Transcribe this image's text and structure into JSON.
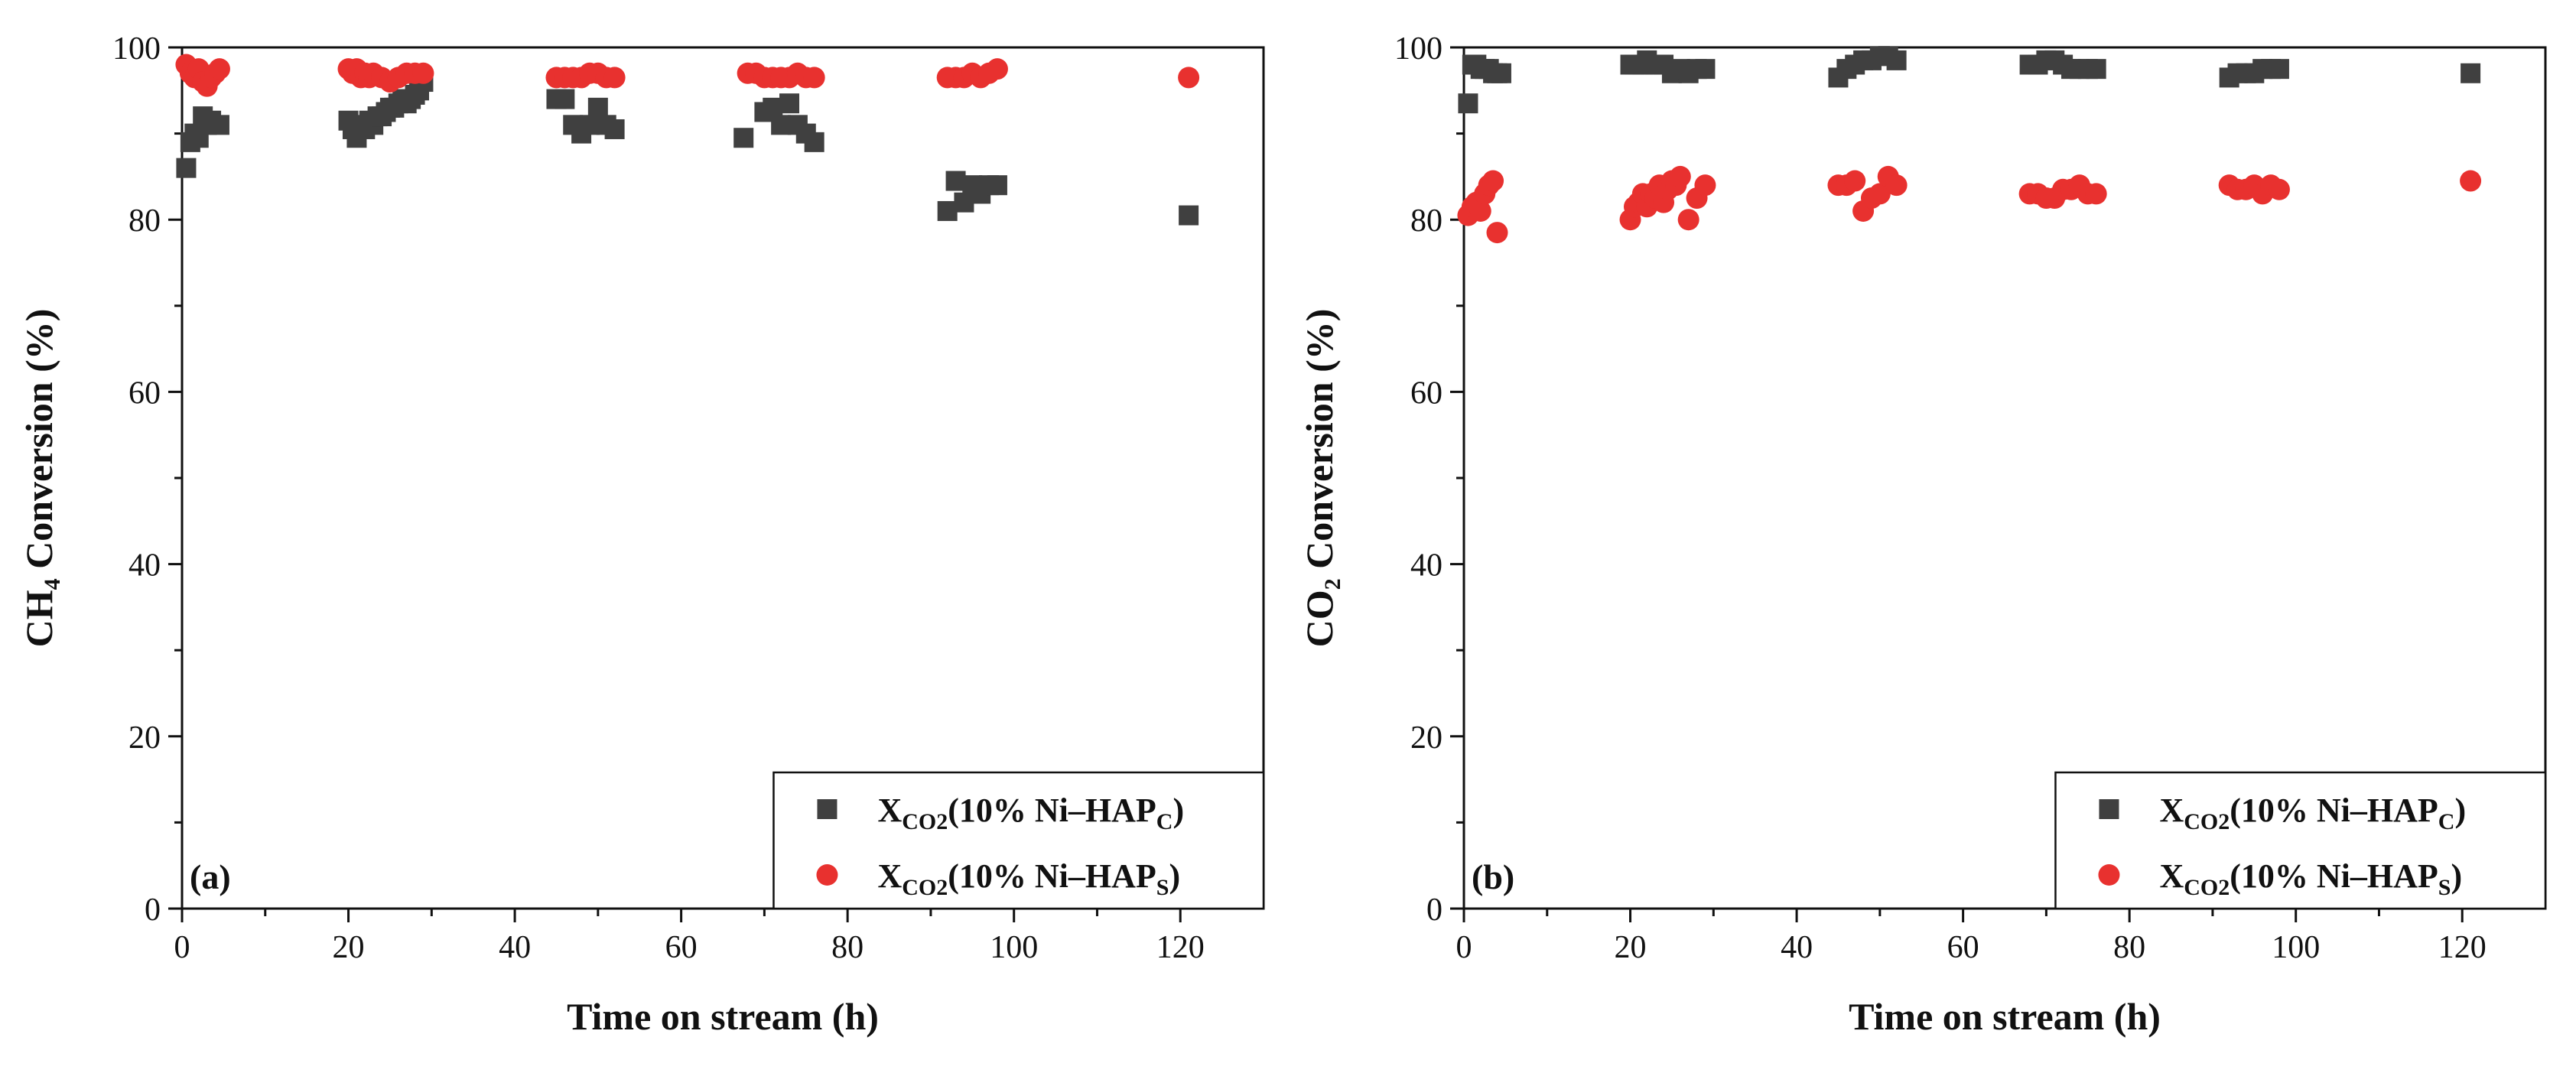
{
  "figure": {
    "colors": {
      "series_c": "#404040",
      "series_s": "#e8312f",
      "axis": "#111111"
    }
  },
  "chart_data": [
    {
      "type": "scatter",
      "panel_tag": "(a)",
      "ylabel": {
        "main": "CH",
        "sub": "4",
        "rest": " Conversion (%)"
      },
      "xlabel": "Time on stream (h)",
      "xlim": [
        0,
        130
      ],
      "ylim": [
        0,
        100
      ],
      "xticks": [
        0,
        20,
        40,
        60,
        80,
        100,
        120
      ],
      "yticks": [
        0,
        20,
        40,
        60,
        80,
        100
      ],
      "legend_position": "bottom-right",
      "series": [
        {
          "name": "X_CO2(10% Ni–HAP_C)",
          "label_main": "X",
          "label_sub": "CO2",
          "label_mid": "(10% Ni–HAP",
          "label_sub2": "C",
          "label_end": ")",
          "marker": "square",
          "color": "#404040",
          "x": [
            0.5,
            1,
            1.5,
            2,
            2.5,
            3,
            3.5,
            4.5,
            20,
            20.5,
            21,
            21.5,
            22,
            22.5,
            23,
            23.5,
            24,
            24.5,
            25,
            25.5,
            26,
            26.5,
            27,
            27.5,
            28,
            28.5,
            29,
            45,
            46,
            47,
            48,
            49,
            50,
            51,
            52,
            67.5,
            70,
            71,
            72,
            73,
            74,
            75,
            76,
            92,
            93,
            94,
            95,
            96,
            97,
            98,
            121
          ],
          "y": [
            86,
            89,
            90,
            89.5,
            92,
            91,
            91.5,
            91,
            91.5,
            90.5,
            89.5,
            91,
            90.5,
            91.5,
            91,
            92,
            92,
            92.5,
            93,
            93,
            93.5,
            94,
            93.5,
            94,
            94.5,
            95,
            96,
            94,
            94,
            91,
            90,
            91,
            93,
            91,
            90.5,
            89.5,
            92.5,
            93,
            91,
            93.5,
            91,
            90,
            89,
            81,
            84.5,
            82,
            84,
            83,
            84,
            84,
            80.5
          ]
        },
        {
          "name": "X_CO2(10% Ni–HAP_S)",
          "label_main": "X",
          "label_sub": "CO2",
          "label_mid": "(10% Ni–HAP",
          "label_sub2": "S",
          "label_end": ")",
          "marker": "circle",
          "color": "#e8312f",
          "x": [
            0.5,
            1,
            1.5,
            2,
            2.5,
            3,
            3.5,
            4,
            4.5,
            20,
            20.5,
            21,
            21.5,
            22,
            22.5,
            23,
            24,
            25,
            26,
            27,
            28,
            29,
            45,
            46,
            47,
            48,
            49,
            50,
            51,
            52,
            68,
            69,
            70,
            71,
            72,
            73,
            74,
            75,
            76,
            92,
            93,
            94,
            95,
            96,
            97,
            98,
            121
          ],
          "y": [
            98,
            97,
            96.5,
            97.5,
            96,
            95.5,
            96.5,
            97,
            97.5,
            97.5,
            97,
            97.5,
            96.5,
            97,
            96.5,
            97,
            96.5,
            96,
            96.5,
            97,
            97,
            97,
            96.5,
            96.5,
            96.5,
            96.5,
            97,
            97,
            96.5,
            96.5,
            97,
            97,
            96.5,
            96.5,
            96.5,
            96.5,
            97,
            96.5,
            96.5,
            96.5,
            96.5,
            96.5,
            97,
            96.5,
            97,
            97.5,
            96.5
          ]
        }
      ]
    },
    {
      "type": "scatter",
      "panel_tag": "(b)",
      "ylabel": {
        "main": "CO",
        "sub": "2",
        "rest": " Conversion (%)"
      },
      "xlabel": "Time on stream (h)",
      "xlim": [
        0,
        130
      ],
      "ylim": [
        0,
        100
      ],
      "xticks": [
        0,
        20,
        40,
        60,
        80,
        100,
        120
      ],
      "yticks": [
        0,
        20,
        40,
        60,
        80,
        100
      ],
      "legend_position": "bottom-right",
      "series": [
        {
          "name": "X_CO2(10% Ni–HAP_C)",
          "label_main": "X",
          "label_sub": "CO2",
          "label_mid": "(10% Ni–HAP",
          "label_sub2": "C",
          "label_end": ")",
          "marker": "square",
          "color": "#404040",
          "x": [
            0.5,
            1,
            1.5,
            2,
            2.5,
            3,
            3.5,
            4,
            4.5,
            20,
            20.5,
            21,
            21.5,
            22,
            22.5,
            23,
            23.5,
            24,
            25,
            26,
            27,
            28,
            29,
            45,
            46,
            47,
            48,
            49,
            50,
            51,
            52,
            68,
            69,
            70,
            71,
            72,
            73,
            74,
            75,
            76,
            92,
            93,
            94,
            95,
            96,
            97,
            98,
            121
          ],
          "y": [
            93.5,
            98,
            98,
            97.5,
            97.5,
            97.5,
            97,
            97,
            97,
            98,
            98,
            98,
            98,
            98.5,
            98,
            98,
            98,
            98,
            97,
            97.5,
            97,
            97.5,
            97.5,
            96.5,
            97.5,
            98,
            98.5,
            98.5,
            99,
            99,
            98.5,
            98,
            98,
            98.5,
            98.5,
            98,
            97.5,
            97.5,
            97.5,
            97.5,
            96.5,
            97,
            97,
            97,
            97.5,
            97.5,
            97.5,
            97
          ]
        },
        {
          "name": "X_CO2(10% Ni–HAP_S)",
          "label_main": "X",
          "label_sub": "CO2",
          "label_mid": "(10% Ni–HAP",
          "label_sub2": "S",
          "label_end": ")",
          "marker": "circle",
          "color": "#e8312f",
          "x": [
            0.5,
            1,
            1.5,
            2,
            2.5,
            3,
            3.5,
            4,
            20,
            20.5,
            21,
            21.5,
            22,
            22.5,
            23,
            23.5,
            24,
            24.5,
            25,
            25.5,
            26,
            27,
            28,
            29,
            45,
            46,
            47,
            48,
            49,
            50,
            51,
            52,
            68,
            69,
            70,
            71,
            72,
            73,
            74,
            75,
            76,
            92,
            93,
            94,
            95,
            96,
            97,
            98,
            121
          ],
          "y": [
            80.5,
            81.5,
            82,
            81,
            83,
            84,
            84.5,
            78.5,
            80,
            81.5,
            82,
            83,
            81.5,
            83,
            82.5,
            84,
            82,
            83.5,
            84.5,
            84,
            85,
            80,
            82.5,
            84,
            84,
            84,
            84.5,
            81,
            82.5,
            83,
            85,
            84,
            83,
            83,
            82.5,
            82.5,
            83.5,
            83.5,
            84,
            83,
            83,
            84,
            83.5,
            83.5,
            84,
            83,
            84,
            83.5,
            84.5
          ]
        }
      ]
    }
  ]
}
